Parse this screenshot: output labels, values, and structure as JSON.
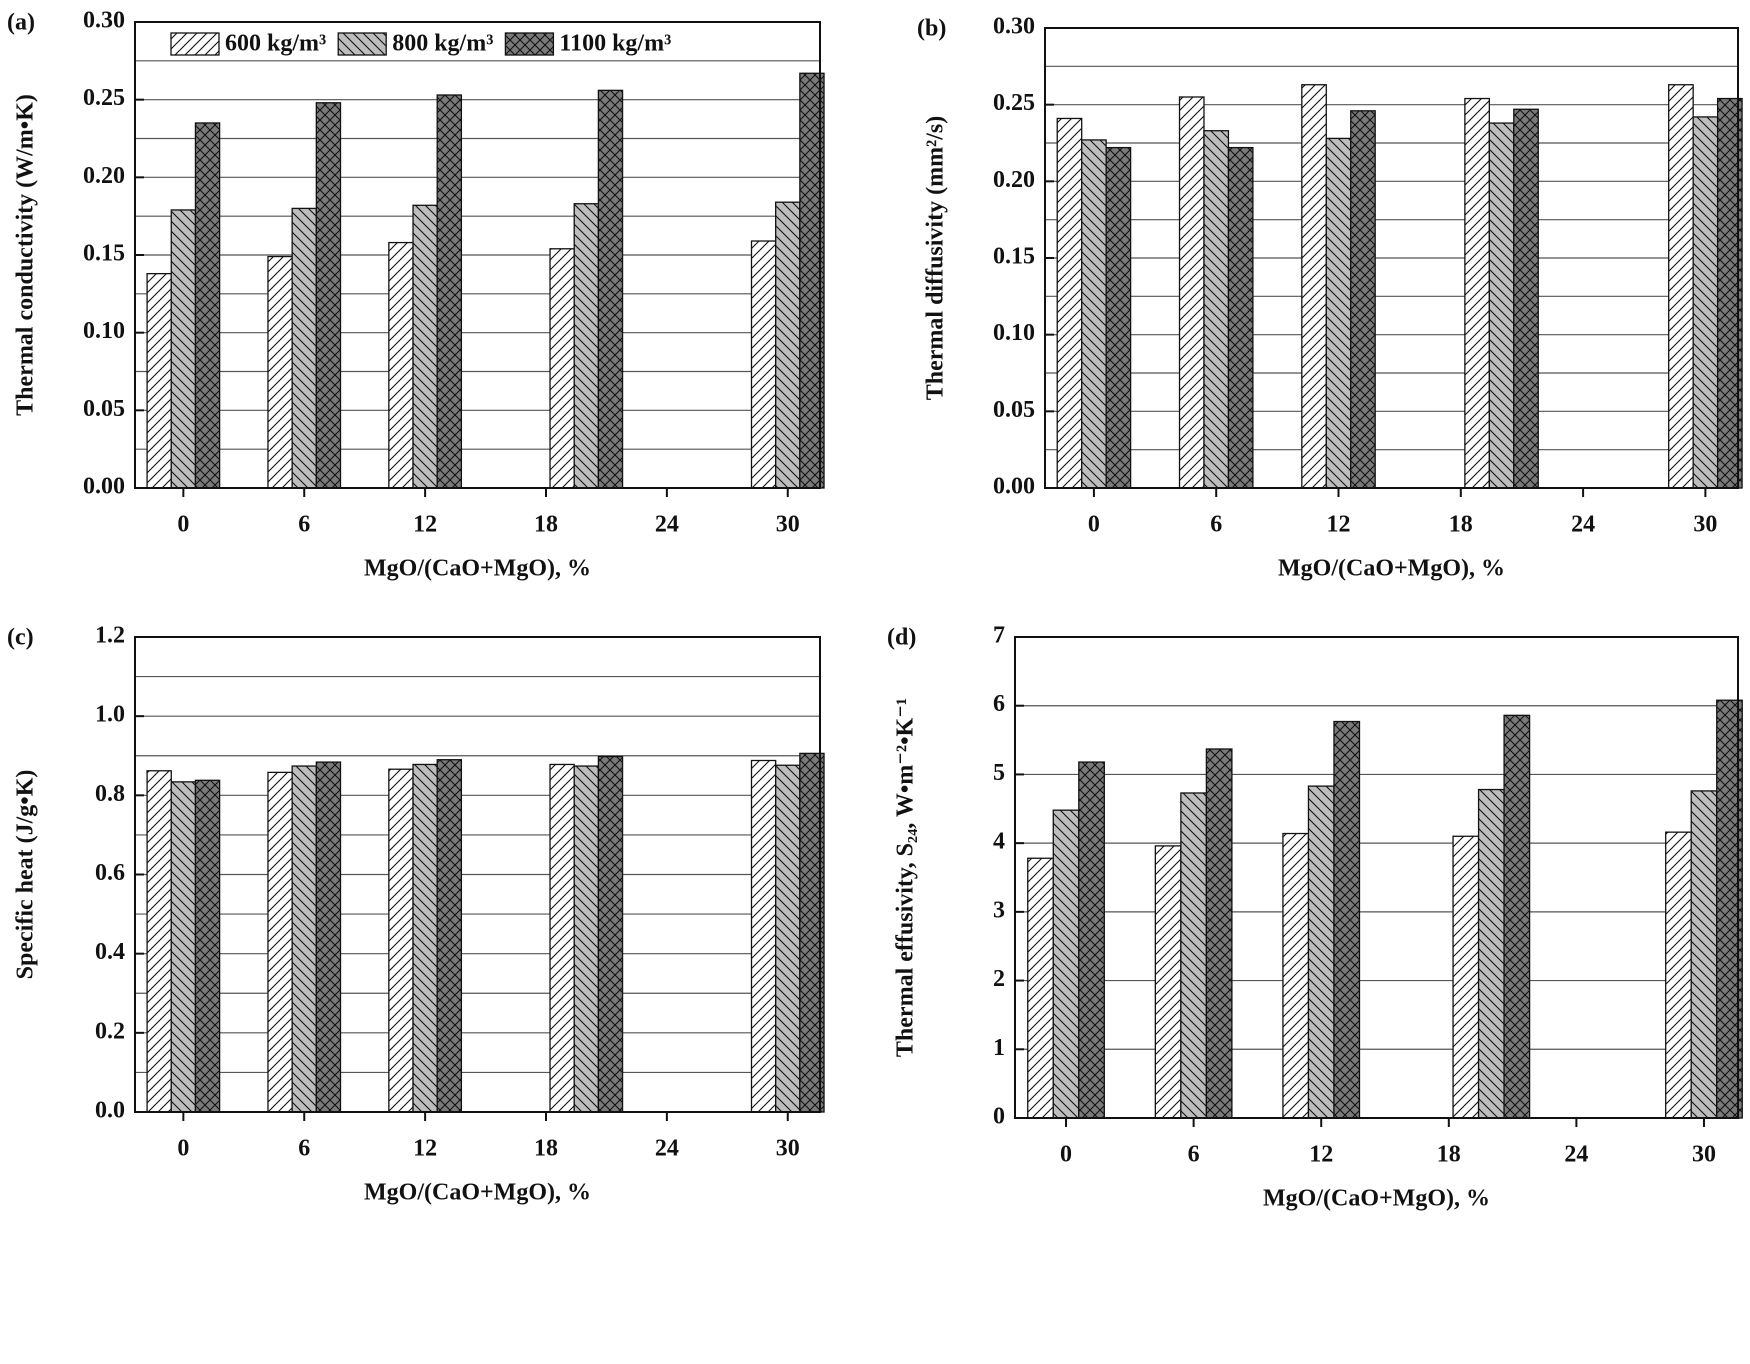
{
  "chart_data": [
    {
      "type": "bar",
      "panel_label": "(a)",
      "y_label": "Thermal conductivity (W/m•K)",
      "x_label": "MgO/(CaO+MgO), %",
      "x": [
        0,
        6,
        12,
        20,
        30
      ],
      "xlim": [
        -2.4,
        31.6
      ],
      "xticks": [
        0,
        6,
        12,
        18,
        24,
        30
      ],
      "ylim": [
        0,
        0.3
      ],
      "yticks": [
        {
          "value": 0,
          "label": "0.00"
        },
        0.05,
        {
          "value": 0.1,
          "label": "0.10"
        },
        0.15,
        {
          "value": 0.2,
          "label": "0.20"
        },
        0.25,
        {
          "value": 0.3,
          "label": "0.30"
        }
      ],
      "minor_yticks": [
        0.025,
        0.075,
        0.125,
        0.175,
        0.225,
        0.275
      ],
      "grid": true,
      "legend": "top",
      "series": [
        {
          "name": "600 kg/m³",
          "color": "#ffffff",
          "pattern": "forward",
          "values": [
            0.138,
            0.149,
            0.158,
            0.154,
            0.159
          ]
        },
        {
          "name": "800 kg/m³",
          "color": "#bdbdbd",
          "pattern": "backward",
          "values": [
            0.179,
            0.18,
            0.182,
            0.183,
            0.184
          ]
        },
        {
          "name": "1100 kg/m³",
          "color": "#7a7a7a",
          "pattern": "cross",
          "values": [
            0.235,
            0.248,
            0.253,
            0.256,
            0.267
          ]
        }
      ]
    },
    {
      "type": "bar",
      "panel_label": "(b)",
      "y_label": "Thermal diffusivity (mm²/s)",
      "x_label": "MgO/(CaO+MgO), %",
      "x": [
        0,
        6,
        12,
        20,
        30
      ],
      "xlim": [
        -2.4,
        31.6
      ],
      "xticks": [
        0,
        6,
        12,
        18,
        24,
        30
      ],
      "ylim": [
        0,
        0.3
      ],
      "yticks": [
        {
          "value": 0,
          "label": "0.00"
        },
        0.05,
        {
          "value": 0.1,
          "label": "0.10"
        },
        0.15,
        {
          "value": 0.2,
          "label": "0.20"
        },
        0.25,
        {
          "value": 0.3,
          "label": "0.30"
        }
      ],
      "minor_yticks": [
        0.025,
        0.075,
        0.125,
        0.175,
        0.225,
        0.275
      ],
      "grid": true,
      "series": [
        {
          "name": "600 kg/m³",
          "color": "#ffffff",
          "pattern": "forward",
          "values": [
            0.241,
            0.255,
            0.263,
            0.254,
            0.263
          ]
        },
        {
          "name": "800 kg/m³",
          "color": "#bdbdbd",
          "pattern": "backward",
          "values": [
            0.227,
            0.233,
            0.228,
            0.238,
            0.242
          ]
        },
        {
          "name": "1100 kg/m³",
          "color": "#7a7a7a",
          "pattern": "cross",
          "values": [
            0.222,
            0.222,
            0.246,
            0.247,
            0.254
          ]
        }
      ]
    },
    {
      "type": "bar",
      "panel_label": "(c)",
      "y_label": "Specific heat (J/g•K)",
      "x_label": "MgO/(CaO+MgO), %",
      "x": [
        0,
        6,
        12,
        20,
        30
      ],
      "xlim": [
        -2.4,
        31.6
      ],
      "xticks": [
        0,
        6,
        12,
        18,
        24,
        30
      ],
      "ylim": [
        0,
        1.2
      ],
      "yticks": [
        {
          "value": 0,
          "label": "0.0"
        },
        0.2,
        0.4,
        0.6,
        0.8,
        {
          "value": 1,
          "label": "1.0"
        },
        1.2
      ],
      "minor_yticks": [
        0.1,
        0.3,
        0.5,
        0.7,
        0.9,
        1.1
      ],
      "grid": true,
      "series": [
        {
          "name": "600 kg/m³",
          "color": "#ffffff",
          "pattern": "forward",
          "values": [
            0.862,
            0.858,
            0.866,
            0.878,
            0.888
          ]
        },
        {
          "name": "800 kg/m³",
          "color": "#bdbdbd",
          "pattern": "backward",
          "values": [
            0.834,
            0.874,
            0.878,
            0.874,
            0.876
          ]
        },
        {
          "name": "1100 kg/m³",
          "color": "#7a7a7a",
          "pattern": "cross",
          "values": [
            0.838,
            0.884,
            0.89,
            0.898,
            0.906
          ]
        }
      ]
    },
    {
      "type": "bar",
      "panel_label": "(d)",
      "y_label": "Thermal effusivity, S₂₄, W•m⁻²•K⁻¹",
      "x_label": "MgO/(CaO+MgO), %",
      "x": [
        0,
        6,
        12,
        20,
        30
      ],
      "xlim": [
        -2.4,
        31.6
      ],
      "xticks": [
        0,
        6,
        12,
        18,
        24,
        30
      ],
      "ylim": [
        0,
        7
      ],
      "yticks": [
        0,
        1,
        2,
        3,
        4,
        5,
        6,
        7
      ],
      "grid": true,
      "series": [
        {
          "name": "600 kg/m³",
          "color": "#ffffff",
          "pattern": "forward",
          "values": [
            3.78,
            3.96,
            4.14,
            4.1,
            4.16
          ]
        },
        {
          "name": "800 kg/m³",
          "color": "#bdbdbd",
          "pattern": "backward",
          "values": [
            4.48,
            4.73,
            4.83,
            4.78,
            4.76
          ]
        },
        {
          "name": "1100 kg/m³",
          "color": "#7a7a7a",
          "pattern": "cross",
          "values": [
            5.18,
            5.37,
            5.77,
            5.86,
            6.08
          ]
        }
      ]
    }
  ]
}
